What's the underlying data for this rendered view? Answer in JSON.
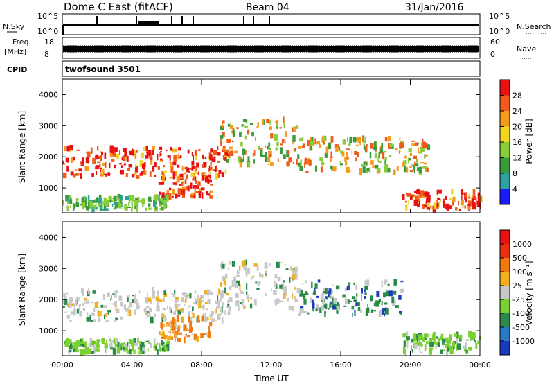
{
  "header": {
    "title": "Dome C East (fitACF)",
    "beam": "Beam 04",
    "date": "31/Jan/2016"
  },
  "panels": {
    "nsky": {
      "left_label": "N.Sky",
      "tick_hi": "10^5",
      "tick_lo": "10^0",
      "right_label": "N.Search",
      "right_tick_hi": "10^5",
      "right_tick_lo": "10^0"
    },
    "freq": {
      "left_label_1": "Freq.",
      "left_label_2": "[MHz]",
      "tick_hi": "18",
      "tick_lo": "8",
      "right_label": "Nave",
      "right_tick_hi": "60",
      "right_tick_lo": "0"
    },
    "cpid": {
      "left_label": "CPID",
      "value": "twofsound 3501"
    }
  },
  "chart_data": [
    {
      "type": "heatmap",
      "name": "power",
      "ylabel": "Slant Range [km]",
      "ylim": [
        200,
        4500
      ],
      "yticks": [
        "1000",
        "2000",
        "3000",
        "4000"
      ],
      "xlim_hours": [
        0,
        24
      ],
      "colorbar": {
        "label": "Power [dB]",
        "ticks": [
          "4",
          "8",
          "12",
          "16",
          "20",
          "24",
          "28"
        ],
        "colors": [
          "#1a1aff",
          "#2ea0a0",
          "#3a9b3a",
          "#8acd3a",
          "#f0d820",
          "#f59a1a",
          "#f05a1a",
          "#e81010"
        ]
      },
      "echo_regions": [
        {
          "x0": 0.0,
          "x1": 9.5,
          "y0": 1300,
          "y1": 2300,
          "level": "high"
        },
        {
          "x0": 5.5,
          "x1": 8.5,
          "y0": 700,
          "y1": 1400,
          "level": "high"
        },
        {
          "x0": 9.0,
          "x1": 13.5,
          "y0": 1700,
          "y1": 3200,
          "level": "mid"
        },
        {
          "x0": 13.5,
          "x1": 21.0,
          "y0": 1500,
          "y1": 2600,
          "level": "mid"
        },
        {
          "x0": 19.5,
          "x1": 24.0,
          "y0": 300,
          "y1": 900,
          "level": "high"
        },
        {
          "x0": 0.0,
          "x1": 6.0,
          "y0": 300,
          "y1": 700,
          "level": "low"
        }
      ]
    },
    {
      "type": "heatmap",
      "name": "velocity",
      "ylabel": "Slant Range [km]",
      "ylim": [
        200,
        4500
      ],
      "yticks": [
        "1000",
        "2000",
        "3000",
        "4000"
      ],
      "xlim_hours": [
        0,
        24
      ],
      "xticks": [
        "00:00",
        "04:00",
        "08:00",
        "12:00",
        "16:00",
        "20:00",
        "00:00"
      ],
      "xlabel": "Time UT",
      "colorbar": {
        "label": "Velocity [m s⁻¹]",
        "ticks": [
          "1000",
          "500",
          "100",
          "25",
          "-25",
          "-100",
          "-500",
          "-1000"
        ],
        "colors": [
          "#1a3ac0",
          "#2a78c8",
          "#2a8a4a",
          "#7ad030",
          "#c8c8c8",
          "#f0b020",
          "#f07a10",
          "#e83010",
          "#e81010"
        ]
      },
      "echo_regions": [
        {
          "x0": 0.0,
          "x1": 9.5,
          "y0": 1300,
          "y1": 2300,
          "level": "neutral"
        },
        {
          "x0": 5.5,
          "x1": 8.5,
          "y0": 700,
          "y1": 1400,
          "level": "away"
        },
        {
          "x0": 9.0,
          "x1": 13.5,
          "y0": 1700,
          "y1": 3200,
          "level": "neutral"
        },
        {
          "x0": 13.5,
          "x1": 19.5,
          "y0": 1500,
          "y1": 2600,
          "level": "toward"
        },
        {
          "x0": 19.5,
          "x1": 24.0,
          "y0": 300,
          "y1": 900,
          "level": "toward_light"
        },
        {
          "x0": 0.0,
          "x1": 6.0,
          "y0": 300,
          "y1": 700,
          "level": "toward_light"
        }
      ]
    }
  ]
}
